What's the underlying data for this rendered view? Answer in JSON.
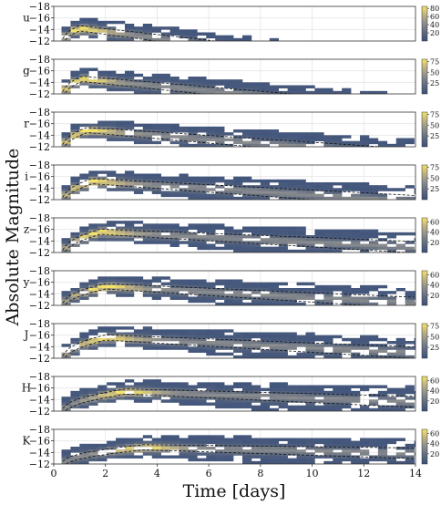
{
  "chart_data": {
    "type": "heatmap",
    "xlabel": "Time [days]",
    "ylabel": "Absolute Magnitude",
    "xlim": [
      0,
      14
    ],
    "xticks": [
      0,
      2,
      4,
      6,
      8,
      10,
      12,
      14
    ],
    "ylim": [
      -12,
      -18
    ],
    "yticks": [
      -18,
      -16,
      -14,
      -12
    ],
    "colormap": [
      "#3a4f7a",
      "#5f6b80",
      "#8a8c8e",
      "#bdb184",
      "#f3e36a"
    ],
    "grid": true,
    "panels": [
      {
        "band": "u",
        "cbar_ticks": [
          20,
          40,
          60,
          80
        ],
        "peak_time": 1.0,
        "peak_mag": -14.2,
        "decline": 0.55,
        "end_time": 10.0,
        "max_count": 85
      },
      {
        "band": "g",
        "cbar_ticks": [
          25,
          50,
          75
        ],
        "peak_time": 1.1,
        "peak_mag": -14.6,
        "decline": 0.42,
        "end_time": 13.0,
        "max_count": 80
      },
      {
        "band": "r",
        "cbar_ticks": [
          25,
          50,
          75
        ],
        "peak_time": 1.3,
        "peak_mag": -14.9,
        "decline": 0.34,
        "end_time": 14.0,
        "max_count": 80
      },
      {
        "band": "i",
        "cbar_ticks": [
          25,
          50,
          75
        ],
        "peak_time": 1.5,
        "peak_mag": -15.2,
        "decline": 0.28,
        "end_time": 14.0,
        "max_count": 80
      },
      {
        "band": "z",
        "cbar_ticks": [
          20,
          40,
          60
        ],
        "peak_time": 1.8,
        "peak_mag": -15.6,
        "decline": 0.22,
        "end_time": 14.0,
        "max_count": 68
      },
      {
        "band": "y",
        "cbar_ticks": [
          20,
          40,
          60
        ],
        "peak_time": 2.0,
        "peak_mag": -15.3,
        "decline": 0.24,
        "end_time": 14.0,
        "max_count": 68
      },
      {
        "band": "J",
        "cbar_ticks": [
          25,
          50,
          75
        ],
        "peak_time": 2.0,
        "peak_mag": -15.6,
        "decline": 0.22,
        "end_time": 14.0,
        "max_count": 80
      },
      {
        "band": "H",
        "cbar_ticks": [
          20,
          40,
          60
        ],
        "peak_time": 2.8,
        "peak_mag": -15.4,
        "decline": 0.16,
        "end_time": 14.0,
        "max_count": 68
      },
      {
        "band": "K",
        "cbar_ticks": [
          20,
          40,
          60
        ],
        "peak_time": 3.5,
        "peak_mag": -14.9,
        "decline": 0.1,
        "end_time": 14.0,
        "max_count": 68
      }
    ]
  }
}
